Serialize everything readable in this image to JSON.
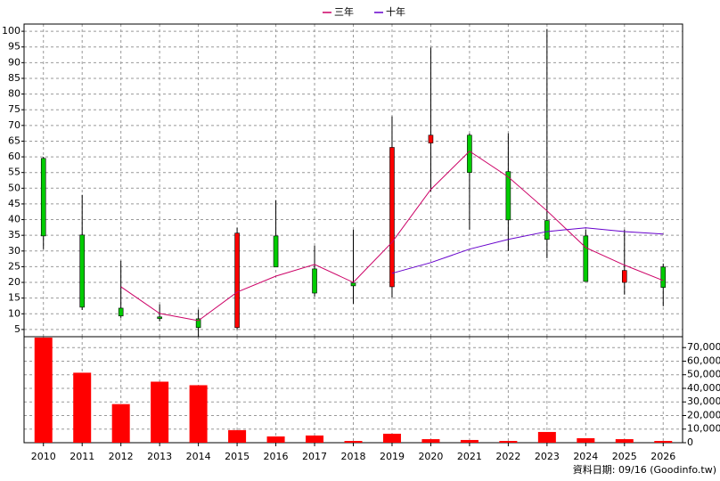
{
  "chart_data": [
    {
      "type": "candlestick",
      "open": [
        59.5,
        35.1,
        11.8,
        9.0,
        8.4,
        5.6,
        34.8,
        24.3,
        19.8,
        18.6,
        64.4,
        66.9,
        55.3,
        39.7,
        34.8,
        20.0,
        24.9
      ],
      "high": [
        60.0,
        47.9,
        26.9,
        13.0,
        11.3,
        37.4,
        46.2,
        31.7,
        36.8,
        72.9,
        94.8,
        67.5,
        67.5,
        100.7,
        36.8,
        36.8,
        26.0
      ],
      "low": [
        30.6,
        11.2,
        8.7,
        7.6,
        2.7,
        5.0,
        24.9,
        15.5,
        13.2,
        15.2,
        49.0,
        36.8,
        30.0,
        27.7,
        20.3,
        16.1,
        12.4
      ],
      "close": [
        34.8,
        12.1,
        9.3,
        8.5,
        5.6,
        35.7,
        24.9,
        16.6,
        18.9,
        63.0,
        66.9,
        55.0,
        39.9,
        33.7,
        20.3,
        23.8,
        18.4
      ],
      "up_color": "#ff0000",
      "down_color": "#00cc00",
      "series": [
        {
          "name": "三年",
          "color": "#cc0066",
          "values": [
            null,
            null,
            18.6,
            10.1,
            7.8,
            16.9,
            22.0,
            25.7,
            20.0,
            32.8,
            49.6,
            61.8,
            53.6,
            42.8,
            31.1,
            25.5,
            20.6
          ]
        },
        {
          "name": "十年",
          "color": "#6600cc",
          "values": [
            null,
            null,
            null,
            null,
            null,
            null,
            null,
            null,
            null,
            22.9,
            26.3,
            30.6,
            33.7,
            36.2,
            37.4,
            36.2,
            35.4
          ]
        }
      ],
      "ylim": [
        2.7,
        102.3
      ],
      "yticks": [
        5,
        10,
        15,
        20,
        25,
        30,
        35,
        40,
        45,
        50,
        55,
        60,
        65,
        70,
        75,
        80,
        85,
        90,
        95,
        100
      ],
      "grid": true
    },
    {
      "type": "bar",
      "categories": [
        "2010",
        "2011",
        "2012",
        "2013",
        "2014",
        "2015",
        "2016",
        "2017",
        "2018",
        "2019",
        "2020",
        "2021",
        "2022",
        "2023",
        "2024",
        "2025",
        "2026"
      ],
      "values": [
        77300,
        51500,
        28400,
        44900,
        42300,
        9250,
        4600,
        5300,
        1300,
        6600,
        2600,
        2000,
        1300,
        7900,
        3300,
        2600,
        1300
      ],
      "color": "#ff0000",
      "ylim": [
        0,
        78000
      ],
      "yticks": [
        0,
        {
          "value": 10000,
          "label": "10,000"
        },
        {
          "value": 20000,
          "label": "20,000"
        },
        {
          "value": 30000,
          "label": "30,000"
        },
        {
          "value": 40000,
          "label": "40,000"
        },
        {
          "value": 50000,
          "label": "50,000"
        },
        {
          "value": 60000,
          "label": "60,000"
        },
        {
          "value": 70000,
          "label": "70,000"
        }
      ],
      "grid": true
    }
  ],
  "footer": "資料日期: 09/16 (Goodinfo.tw)"
}
